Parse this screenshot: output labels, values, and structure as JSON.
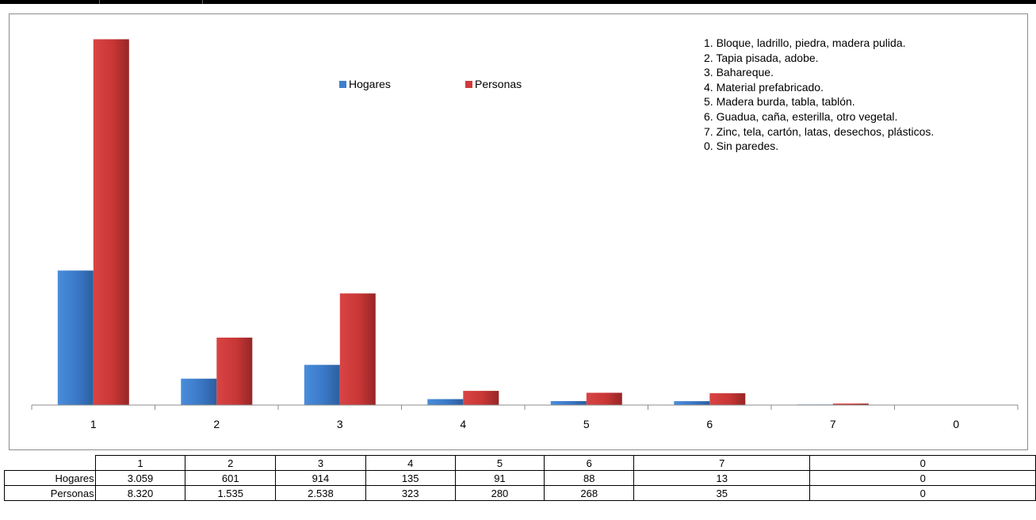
{
  "chart_data": {
    "type": "bar",
    "categories": [
      "1",
      "2",
      "3",
      "4",
      "5",
      "6",
      "7",
      "0"
    ],
    "series": [
      {
        "name": "Hogares",
        "values": [
          3059,
          601,
          914,
          135,
          91,
          88,
          13,
          0
        ],
        "color": "#3f7fcf"
      },
      {
        "name": "Personas",
        "values": [
          8320,
          1535,
          2538,
          323,
          280,
          268,
          35,
          0
        ],
        "color": "#cf3a3a"
      }
    ],
    "ylim": [
      0,
      8600
    ],
    "grid": false,
    "legend_placement": "top-center",
    "notes": [
      "1. Bloque, ladrillo, piedra, madera pulida.",
      "2. Tapia pisada, adobe.",
      "3. Bahareque.",
      "4. Material prefabricado.",
      "5. Madera burda, tabla, tablón.",
      "6. Guadua, caña, esterilla, otro vegetal.",
      "7. Zinc, tela, cartón, latas, desechos, plásticos.",
      "0. Sin paredes."
    ]
  },
  "table": {
    "headers": [
      "1",
      "2",
      "3",
      "4",
      "5",
      "6",
      "7",
      "0"
    ],
    "rows": [
      {
        "label": "Hogares",
        "values": [
          "3.059",
          "601",
          "914",
          "135",
          "91",
          "88",
          "13",
          "0"
        ]
      },
      {
        "label": "Personas",
        "values": [
          "8.320",
          "1.535",
          "2.538",
          "323",
          "280",
          "268",
          "35",
          "0"
        ]
      }
    ]
  }
}
